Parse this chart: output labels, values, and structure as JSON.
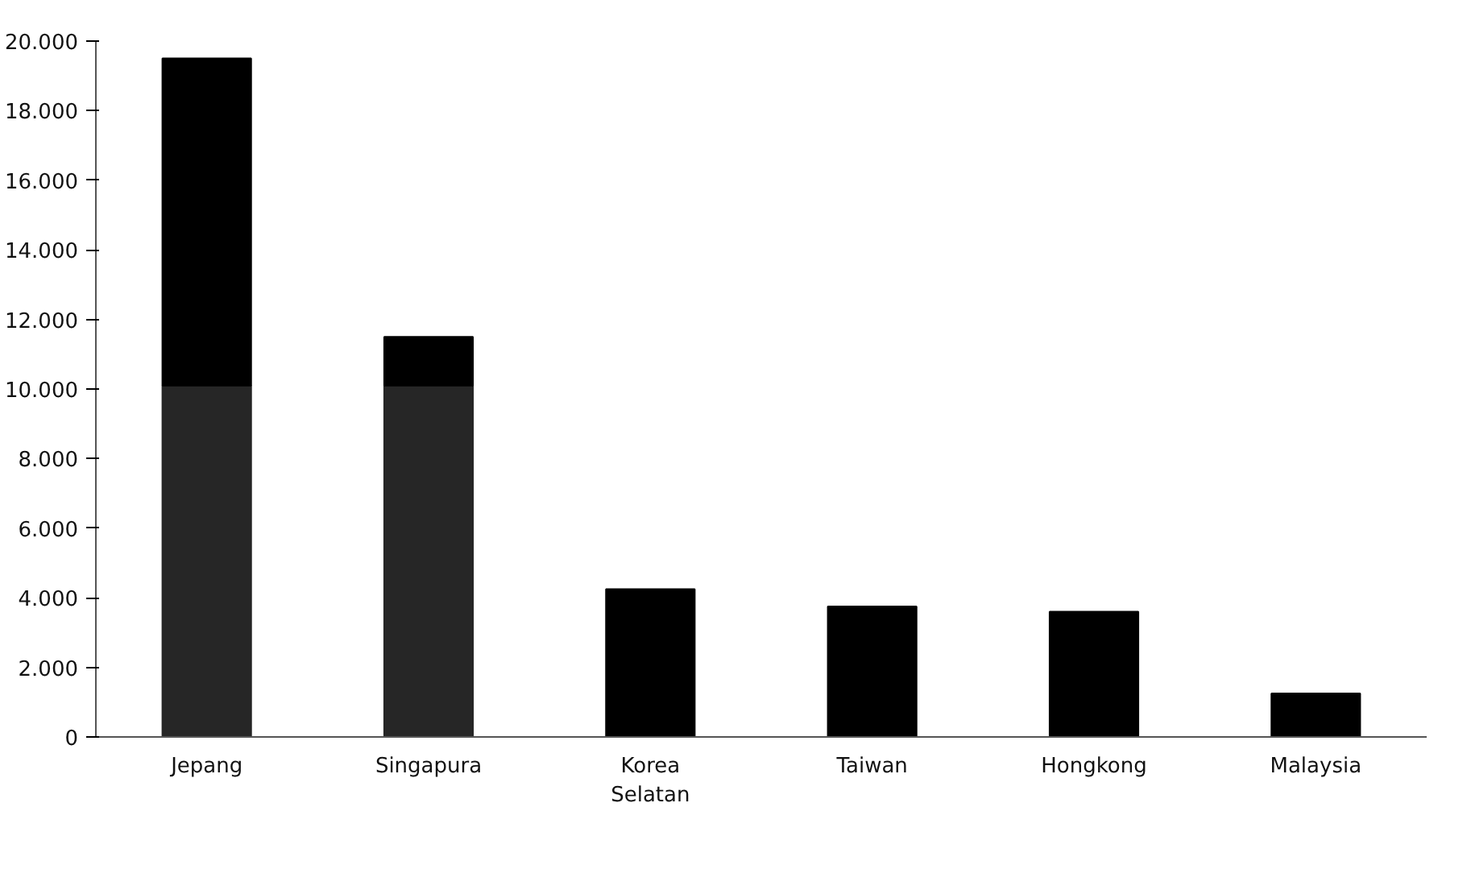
{
  "chart_data": {
    "type": "bar",
    "stacked": true,
    "categories": [
      "Jepang",
      "Singapura",
      "Korea\nSelatan",
      "Taiwan",
      "Hongkong",
      "Malaysia"
    ],
    "series": [
      {
        "color": "#262626",
        "values": [
          10100,
          10100,
          null,
          null,
          null,
          null
        ]
      },
      {
        "color": "#000000",
        "values": [
          9400,
          1400,
          4250,
          3750,
          3600,
          1250
        ]
      }
    ],
    "ylim": [
      0,
      20000
    ],
    "yticks": [
      {
        "value": 0,
        "label": "0"
      },
      {
        "value": 2000,
        "label": "2.000"
      },
      {
        "value": 4000,
        "label": "4.000"
      },
      {
        "value": 6000,
        "label": "6.000"
      },
      {
        "value": 8000,
        "label": "8.000"
      },
      {
        "value": 10000,
        "label": "10.000"
      },
      {
        "value": 12000,
        "label": "12.000"
      },
      {
        "value": 14000,
        "label": "14.000"
      },
      {
        "value": 16000,
        "label": "16.000"
      },
      {
        "value": 18000,
        "label": "18.000"
      },
      {
        "value": 20000,
        "label": "20.000"
      }
    ],
    "grid": false
  }
}
